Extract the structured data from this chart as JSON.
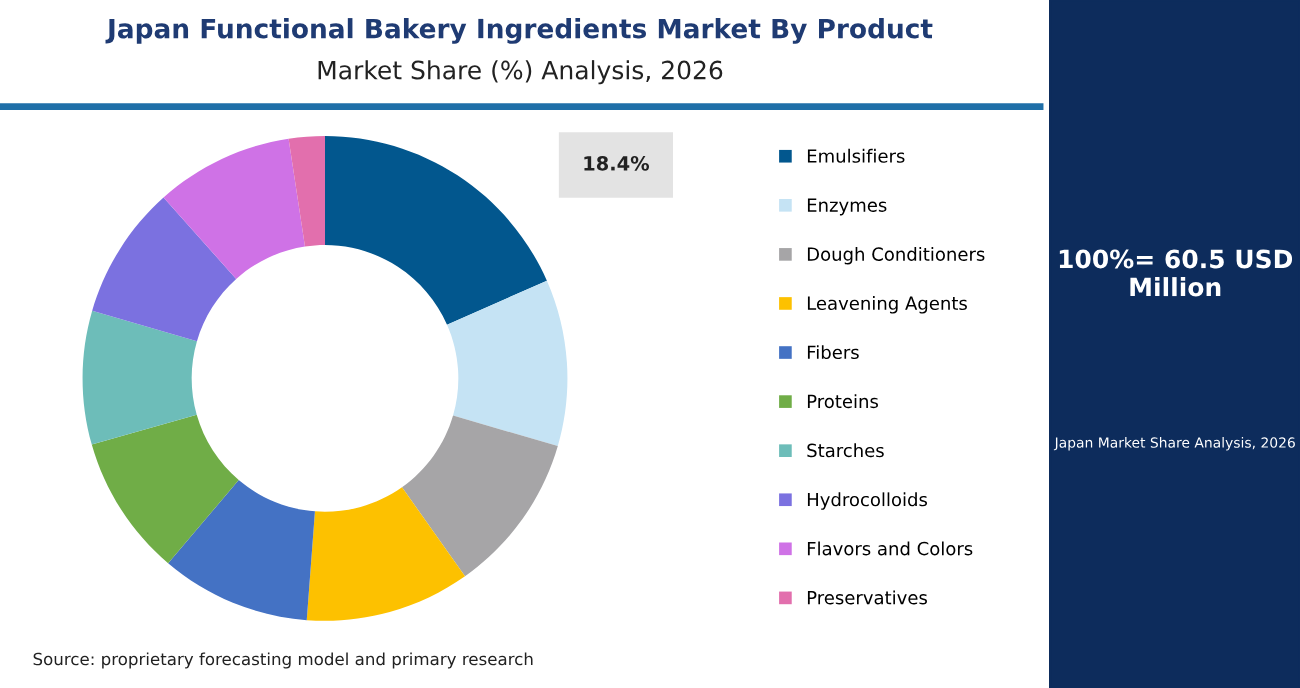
{
  "chart_data": {
    "type": "donut",
    "title": "Japan Functional Bakery Ingredients Market By Product",
    "subtitle": "Market Share (%) Analysis, 2026",
    "categories": [
      "Emulsifiers",
      "Enzymes",
      "Dough Conditioners",
      "Leavening Agents",
      "Fibers",
      "Proteins",
      "Starches",
      "Hydrocolloids",
      "Flavors and Colors",
      "Preservatives"
    ],
    "values": [
      18.4,
      11.1,
      10.7,
      11.0,
      10.0,
      9.4,
      8.9,
      8.9,
      9.2,
      2.4
    ],
    "colors": [
      "#02578e",
      "#c5e3f4",
      "#a6a5a7",
      "#fdc100",
      "#4472c4",
      "#70ad47",
      "#6dbdb9",
      "#7b71e0",
      "#cf72e6",
      "#e26fad"
    ],
    "value_labels": [
      "18.4%",
      null,
      null,
      null,
      null,
      null,
      null,
      null,
      null,
      null
    ],
    "legend": "right",
    "annotations": [
      "100%= 60.5 USD Million",
      "Japan Market Share Analysis, 2026",
      "Source: proprietary forecasting model and primary research"
    ]
  }
}
